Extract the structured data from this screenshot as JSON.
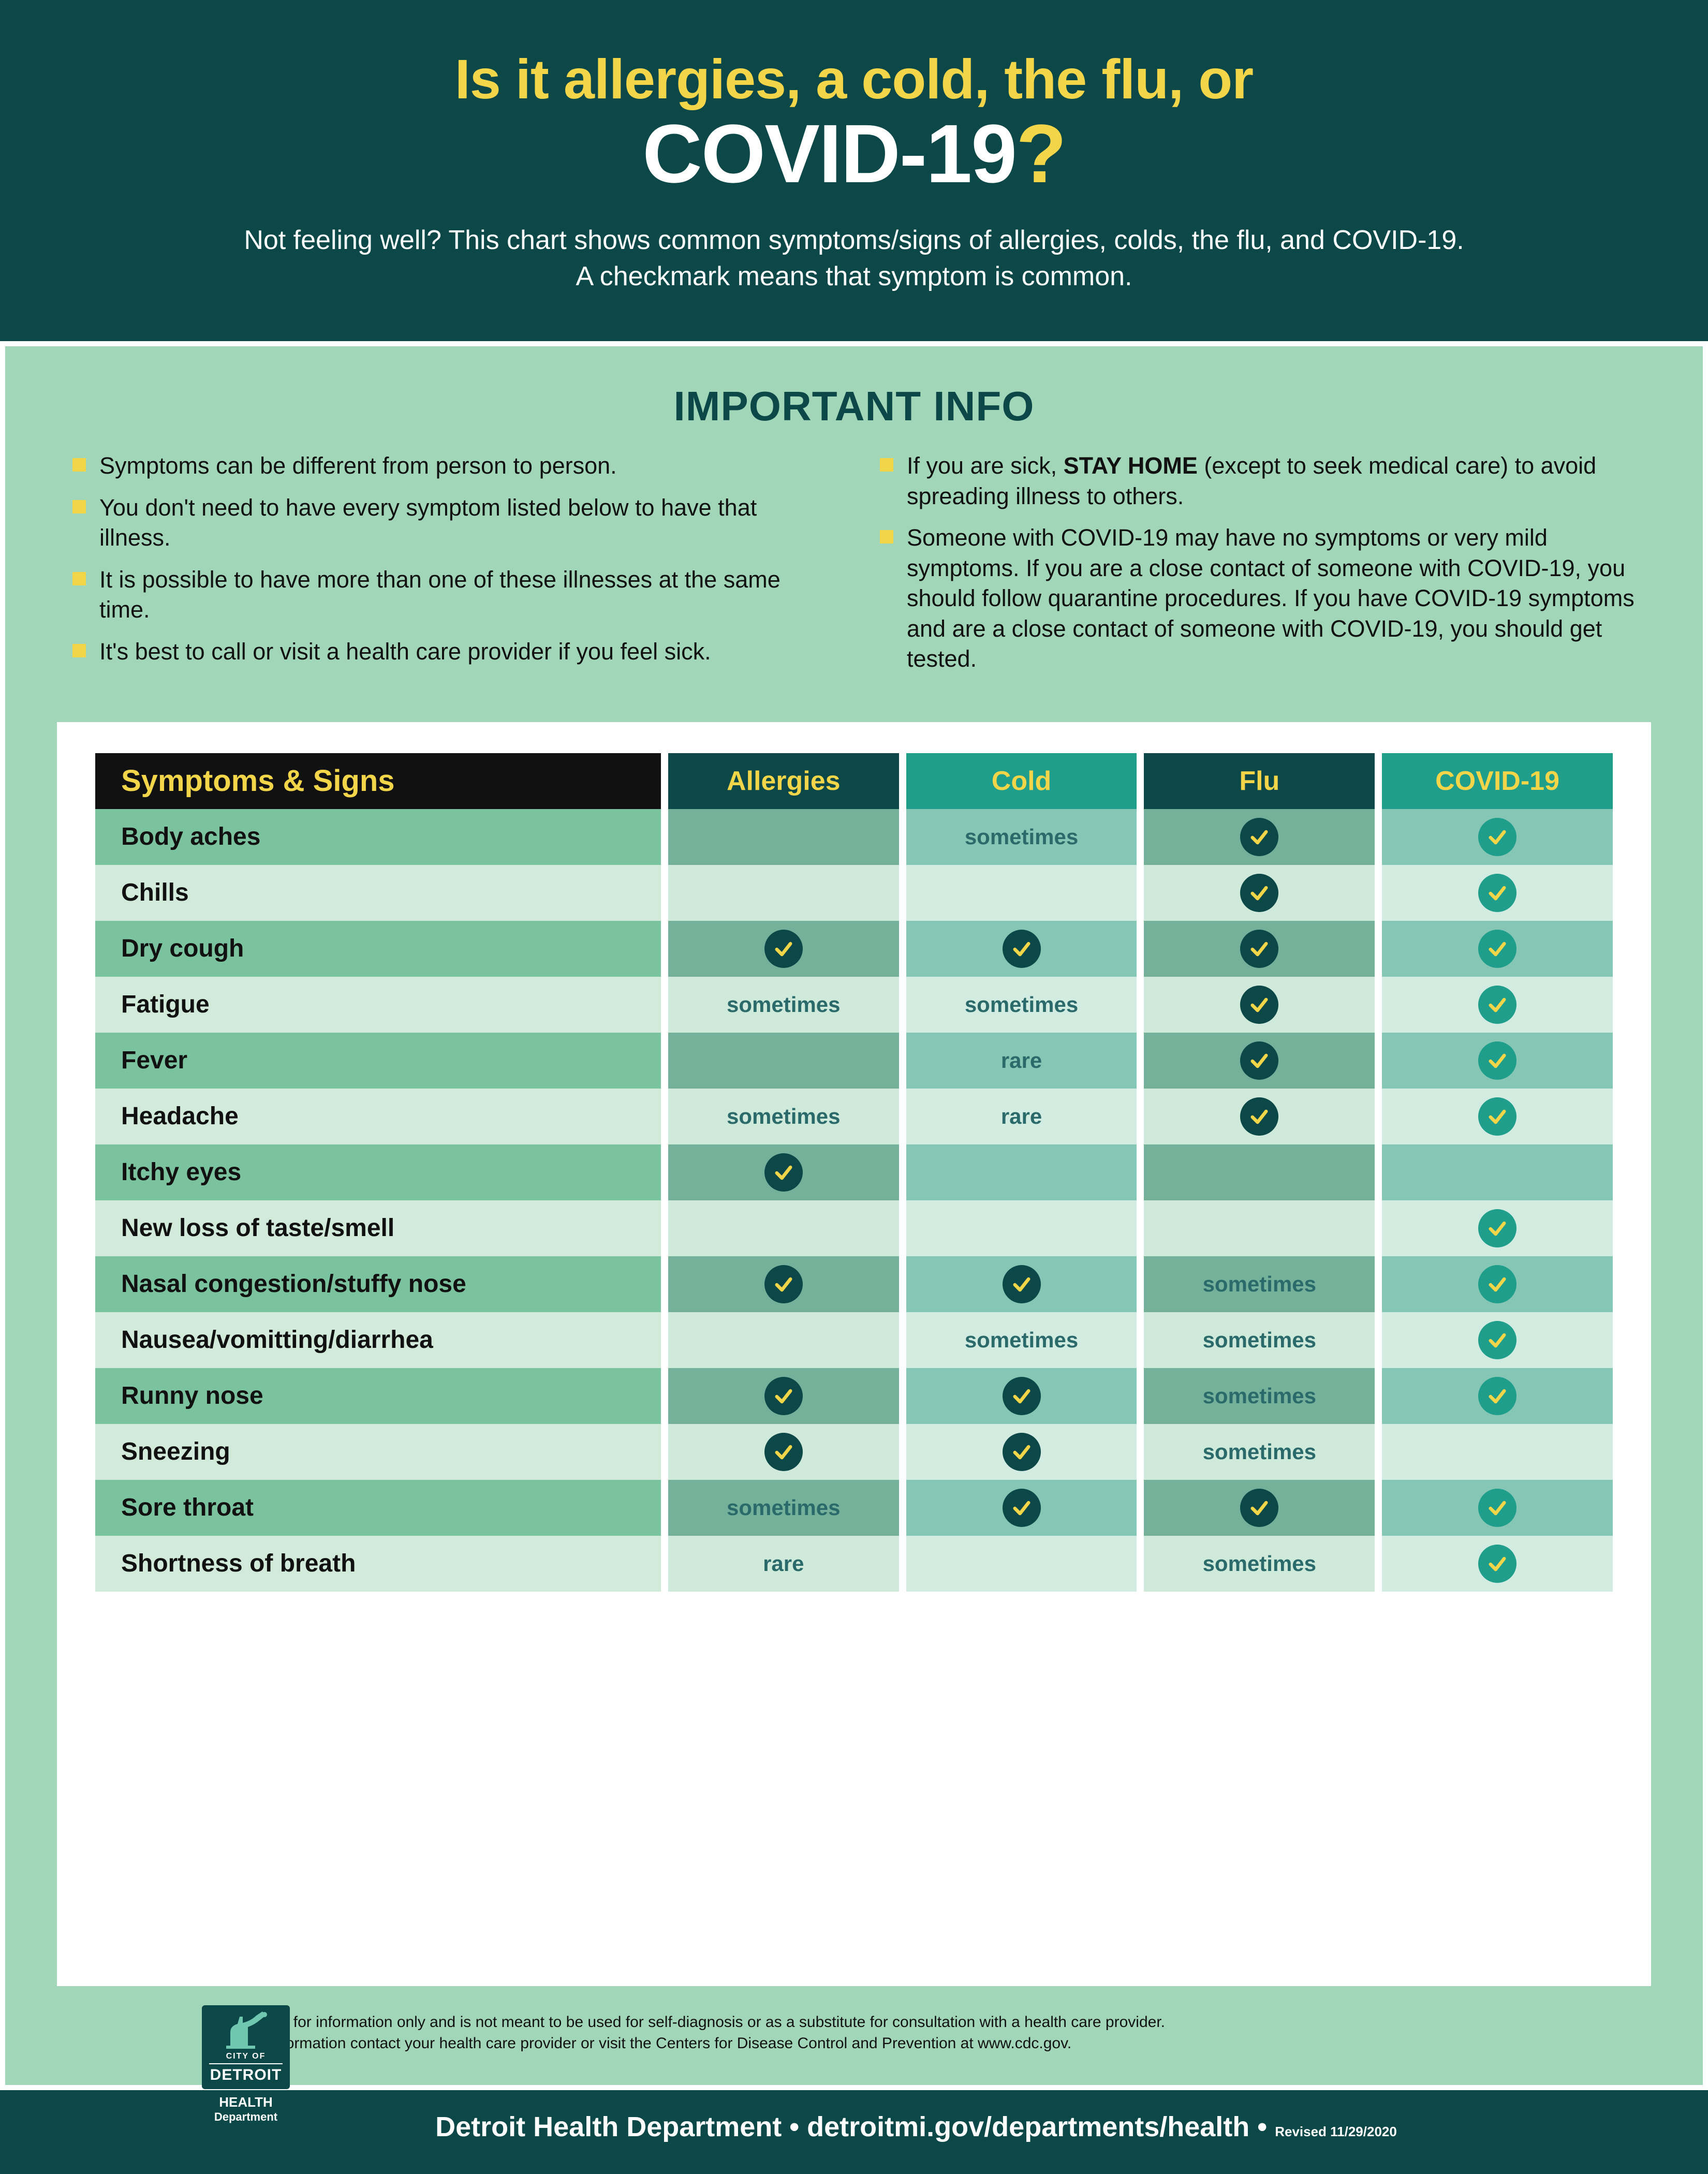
{
  "header": {
    "title_line1": "Is it allergies, a cold, the flu, or",
    "title_word": "COVID-19",
    "title_q": "?",
    "subtitle": "Not feeling well? This chart shows common symptoms/signs of allergies, colds, the flu, and COVID-19.\nA checkmark means that symptom is common."
  },
  "info": {
    "title": "IMPORTANT INFO",
    "left": [
      "Symptoms can be different from person to person.",
      "You don't need to have every symptom listed below to have that illness.",
      "It is possible to have more than one of these illnesses at the same time.",
      "It's best to call or visit a health care provider if you feel sick."
    ],
    "right": [
      "If you are sick, <b>STAY HOME</b> (except to seek medical care) to avoid spreading illness to others.",
      "Someone with COVID-19 may have no symptoms or very mild symptoms. If you are a close contact of someone with COVID-19, you should follow quaran­tine procedures. If you have COVID-19 symptoms and are a close contact of someone with COVID-19, you should get tested."
    ]
  },
  "table": {
    "header_label": "Symptoms & Signs",
    "columns": [
      {
        "label": "Allergies",
        "head_bg": "#0d4848",
        "dark_bg": "#74b09a",
        "light_bg": "#cfe9db",
        "text_color": "#2a6a6a",
        "check_bg": "#0d4848"
      },
      {
        "label": "Cold",
        "head_bg": "#1f9e8c",
        "dark_bg": "#86c6b5",
        "light_bg": "#d2ece2",
        "text_color": "#2a6a6a",
        "check_bg": "#0d4848"
      },
      {
        "label": "Flu",
        "head_bg": "#0d4848",
        "dark_bg": "#74b09a",
        "light_bg": "#cfe9db",
        "text_color": "#2a6a6a",
        "check_bg": "#0d4848"
      },
      {
        "label": "COVID-19",
        "head_bg": "#1f9e8c",
        "dark_bg": "#86c6b5",
        "light_bg": "#d2ece2",
        "text_color": "#2a6a6a",
        "check_bg": "#1f9e8c"
      }
    ],
    "label_dark_bg": "#7bc29f",
    "label_light_bg": "#d1ead9",
    "rows": [
      {
        "label": "Body aches",
        "cells": [
          "",
          "sometimes",
          "check",
          "check"
        ]
      },
      {
        "label": "Chills",
        "cells": [
          "",
          "",
          "check",
          "check"
        ]
      },
      {
        "label": "Dry cough",
        "cells": [
          "check",
          "check",
          "check",
          "check"
        ]
      },
      {
        "label": "Fatigue",
        "cells": [
          "sometimes",
          "sometimes",
          "check",
          "check"
        ]
      },
      {
        "label": "Fever",
        "cells": [
          "",
          "rare",
          "check",
          "check"
        ]
      },
      {
        "label": "Headache",
        "cells": [
          "sometimes",
          "rare",
          "check",
          "check"
        ]
      },
      {
        "label": "Itchy eyes",
        "cells": [
          "check",
          "",
          "",
          ""
        ]
      },
      {
        "label": "New loss of taste/smell",
        "cells": [
          "",
          "",
          "",
          "check"
        ]
      },
      {
        "label": "Nasal congestion/stuffy nose",
        "cells": [
          "check",
          "check",
          "sometimes",
          "check"
        ]
      },
      {
        "label": "Nausea/vomitting/diarrhea",
        "cells": [
          "",
          "sometimes",
          "sometimes",
          "check"
        ]
      },
      {
        "label": "Runny nose",
        "cells": [
          "check",
          "check",
          "sometimes",
          "check"
        ]
      },
      {
        "label": "Sneezing",
        "cells": [
          "check",
          "check",
          "sometimes",
          ""
        ]
      },
      {
        "label": "Sore throat",
        "cells": [
          "sometimes",
          "check",
          "check",
          "check"
        ]
      },
      {
        "label": "Shortness of breath",
        "cells": [
          "rare",
          "",
          "sometimes",
          "check"
        ]
      }
    ]
  },
  "logo": {
    "city": "CITY OF",
    "detroit": "DETROIT",
    "dept1": "HEALTH",
    "dept2": "Department"
  },
  "disclaimer": "This sheet is for information only and is not meant to be used for self-diagnosis or as a substitute for consultation with a health care provider.\nFor more information contact your health care provider or visit the Centers for Disease Control and Prevention at www.cdc.gov.",
  "footer": {
    "text": "Detroit Health Department • detroitmi.gov/departments/health • ",
    "revised": "Revised 11/29/2020"
  },
  "colors": {
    "header_bg": "#0d4848",
    "main_bg": "#a1d6b8",
    "accent_yellow": "#f2d548"
  }
}
